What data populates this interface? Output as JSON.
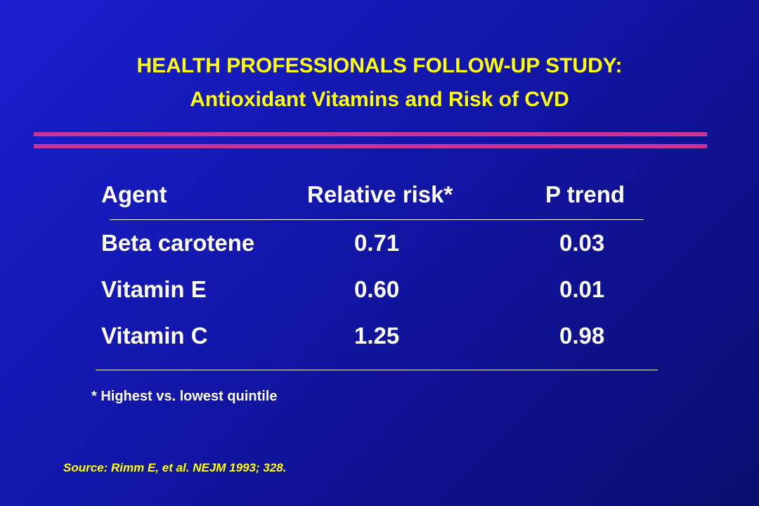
{
  "slide": {
    "title_line1": "HEALTH PROFESSIONALS FOLLOW-UP STUDY:",
    "title_line2": "Antioxidant Vitamins and Risk of CVD",
    "accent_color": "#cc3399",
    "title_color": "#ffff00",
    "background_color": "#1a1fd0"
  },
  "table": {
    "headers": {
      "agent": "Agent",
      "relative_risk": "Relative risk*",
      "p_trend": "P trend"
    },
    "rows": [
      {
        "agent": "Beta carotene",
        "relative_risk": "0.71",
        "p_trend": "0.03"
      },
      {
        "agent": "Vitamin E",
        "relative_risk": "0.60",
        "p_trend": "0.01"
      },
      {
        "agent": "Vitamin C",
        "relative_risk": "1.25",
        "p_trend": "0.98"
      }
    ]
  },
  "footnote": "* Highest vs. lowest quintile",
  "source": "Source:  Rimm E, et al.  NEJM 1993; 328."
}
